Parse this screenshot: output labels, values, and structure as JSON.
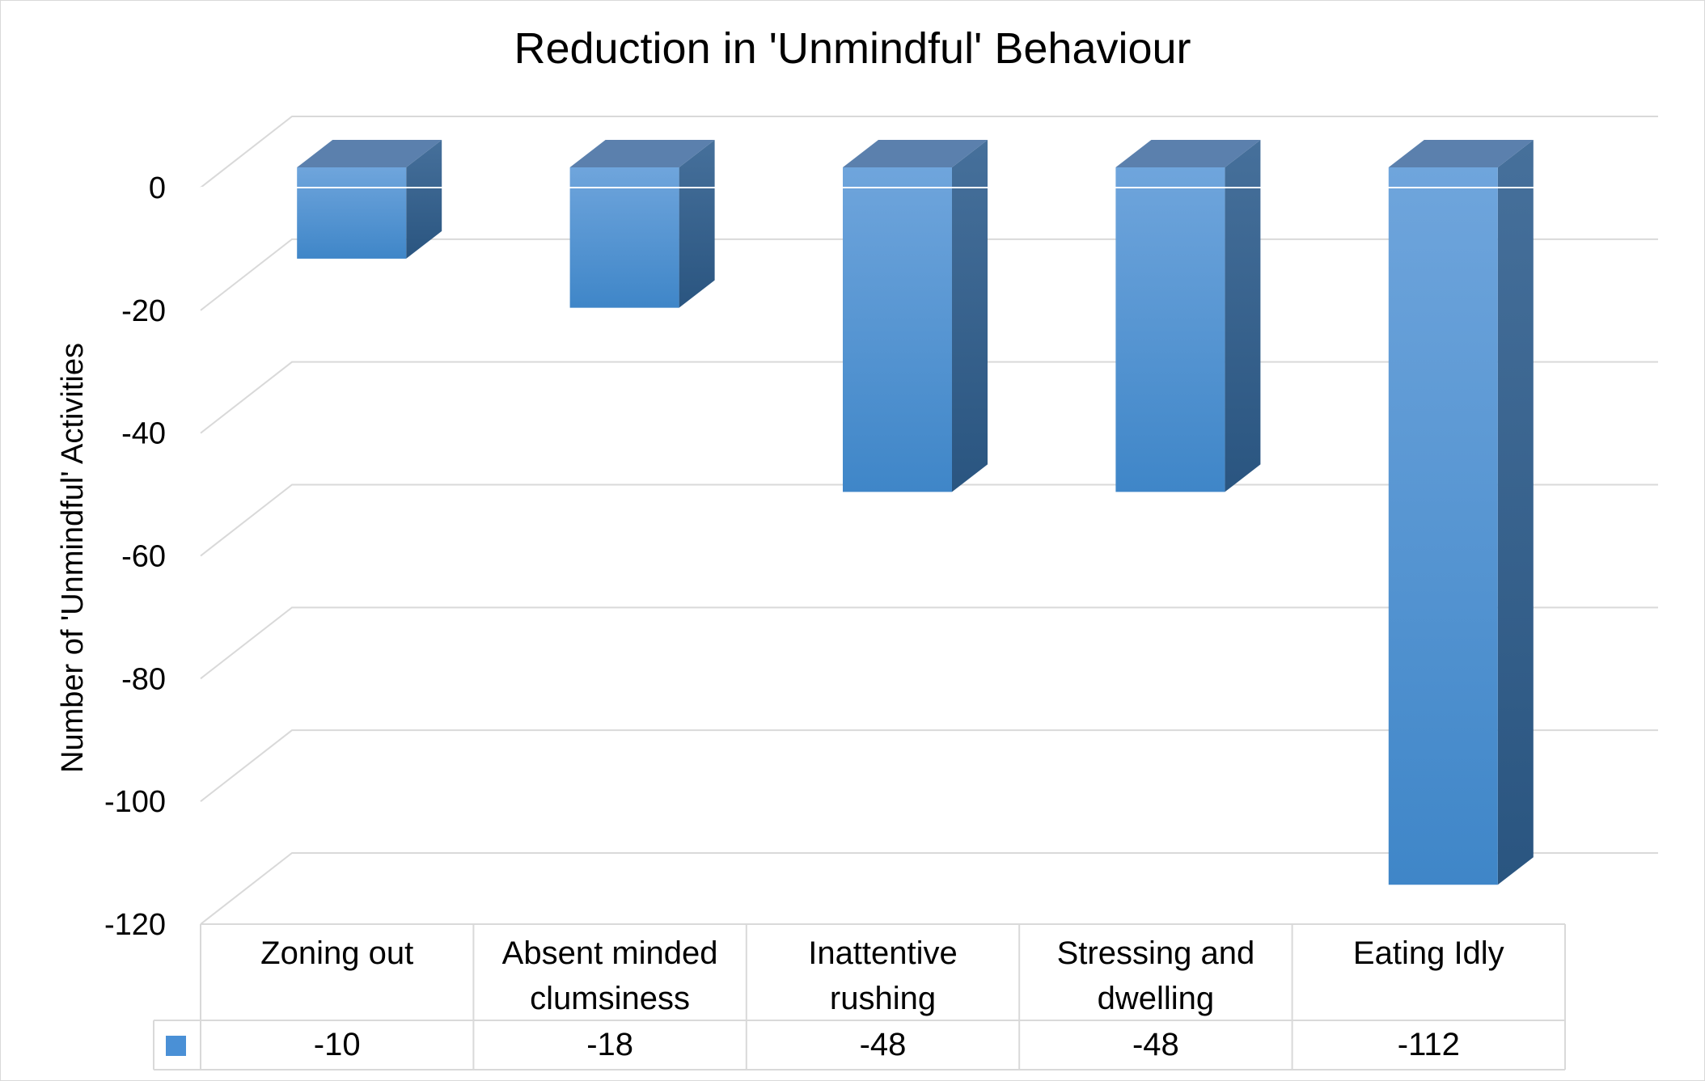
{
  "chart_data": {
    "type": "bar",
    "title": "Reduction in 'Unmindful' Behaviour",
    "xlabel": "",
    "ylabel": "Number of 'Unmindful' Activities",
    "ylim": [
      -120,
      0
    ],
    "yticks": [
      "0",
      "-20",
      "-40",
      "-60",
      "-80",
      "-100",
      "-120"
    ],
    "categories": [
      [
        "Zoning out"
      ],
      [
        "Absent minded",
        "clumsiness"
      ],
      [
        "Inattentive",
        "rushing"
      ],
      [
        "Stressing and",
        "dwelling"
      ],
      [
        "Eating Idly"
      ]
    ],
    "values": [
      -10,
      -18,
      -48,
      -48,
      -112
    ],
    "value_labels": [
      "-10",
      "-18",
      "-48",
      "-48",
      "-112"
    ],
    "grid": true,
    "data_table": true,
    "colors": {
      "bar_top": "#6fa5dc",
      "bar_bottom": "#3f86c8",
      "bar_side": "#2d5c8a",
      "bar_cap": "#5b80ad",
      "legend_key": "#4a90d6"
    }
  }
}
